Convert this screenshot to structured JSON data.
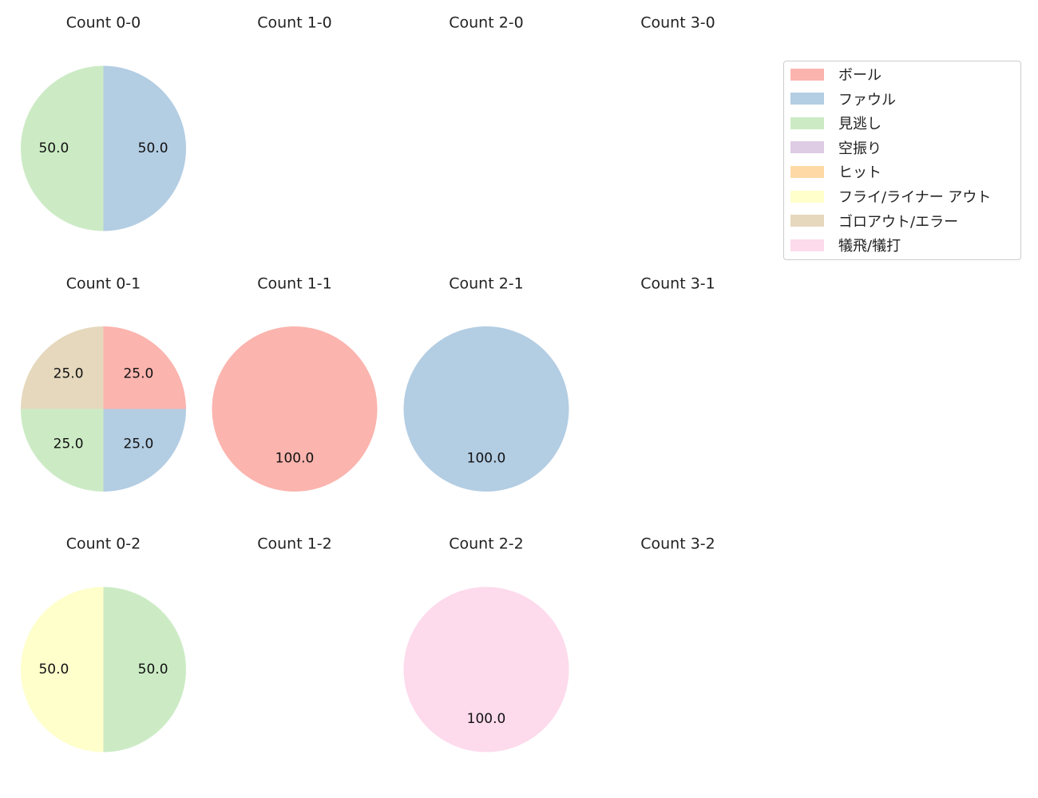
{
  "colors": {
    "ボール": "#fbb4ae",
    "ファウル": "#b3cde3",
    "見逃し": "#ccebc5",
    "空振り": "#decbe4",
    "ヒット": "#fed9a6",
    "フライ/ライナー アウト": "#ffffcc",
    "ゴロアウト/エラー": "#e5d8bd",
    "犠飛/犠打": "#fddaec"
  },
  "legend": {
    "position": "upper-right",
    "entries": [
      "ボール",
      "ファウル",
      "見逃し",
      "空振り",
      "ヒット",
      "フライ/ライナー アウト",
      "ゴロアウト/エラー",
      "犠飛/犠打"
    ]
  },
  "chart_data": [
    {
      "type": "pie",
      "title": "Count 0-0",
      "labels": [
        "ファウル",
        "見逃し"
      ],
      "values": [
        50.0,
        50.0
      ]
    },
    {
      "type": "pie",
      "title": "Count 1-0",
      "labels": [],
      "values": []
    },
    {
      "type": "pie",
      "title": "Count 2-0",
      "labels": [],
      "values": []
    },
    {
      "type": "pie",
      "title": "Count 3-0",
      "labels": [],
      "values": []
    },
    {
      "type": "pie",
      "title": "Count 0-1",
      "labels": [
        "ボール",
        "ファウル",
        "見逃し",
        "ゴロアウト/エラー"
      ],
      "values": [
        25.0,
        25.0,
        25.0,
        25.0
      ]
    },
    {
      "type": "pie",
      "title": "Count 1-1",
      "labels": [
        "ボール"
      ],
      "values": [
        100.0
      ]
    },
    {
      "type": "pie",
      "title": "Count 2-1",
      "labels": [
        "ファウル"
      ],
      "values": [
        100.0
      ]
    },
    {
      "type": "pie",
      "title": "Count 3-1",
      "labels": [],
      "values": []
    },
    {
      "type": "pie",
      "title": "Count 0-2",
      "labels": [
        "見逃し",
        "フライ/ライナー アウト"
      ],
      "values": [
        50.0,
        50.0
      ]
    },
    {
      "type": "pie",
      "title": "Count 1-2",
      "labels": [],
      "values": []
    },
    {
      "type": "pie",
      "title": "Count 2-2",
      "labels": [
        "犠飛/犠打"
      ],
      "values": [
        100.0
      ]
    },
    {
      "type": "pie",
      "title": "Count 3-2",
      "labels": [],
      "values": []
    }
  ]
}
